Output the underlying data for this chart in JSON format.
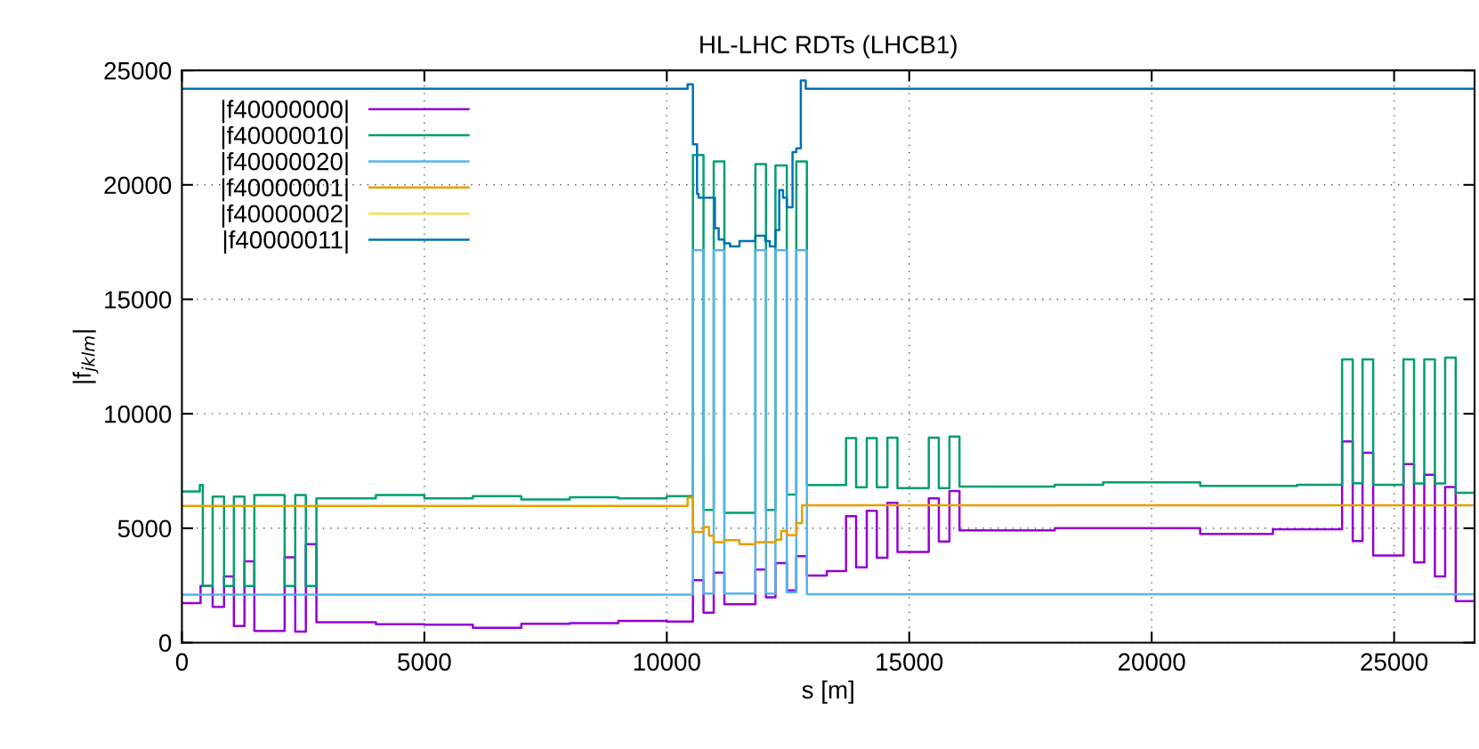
{
  "chart_data": {
    "type": "step",
    "title": "HL-LHC RDTs (LHCB1)",
    "xlabel": "s [m]",
    "ylabel": "|f$_{jklm}$|",
    "xlim": [
      0,
      26659
    ],
    "xticks": [
      0,
      5000,
      10000,
      15000,
      20000,
      25000
    ],
    "ylim": [
      0,
      25000
    ],
    "yticks": [
      0,
      5000,
      10000,
      15000,
      20000,
      25000
    ],
    "grid": true,
    "legend": "top left",
    "line_style": "solid",
    "marker": "none",
    "series": [
      {
        "name": "|f40000000|",
        "color": "#9400d3",
        "x": [
          0,
          385,
          634,
          869,
          1072,
          1290,
          1494,
          2118,
          2337,
          2556,
          2774,
          4000,
          5000,
          6000,
          7000,
          8000,
          9000,
          10000,
          10539,
          10757,
          10968,
          11187,
          11827,
          12046,
          12241,
          12475,
          12671,
          12889,
          13300,
          13697,
          13904,
          14124,
          14331,
          14550,
          14757,
          15403,
          15610,
          15829,
          16036,
          18000,
          21000,
          22500,
          23927,
          24146,
          24349,
          24568,
          25193,
          25411,
          25622,
          25841,
          26052,
          26270,
          26659
        ],
        "values": [
          1727,
          2476,
          1561,
          2892,
          730,
          3557,
          513,
          3724,
          480,
          4305,
          896,
          800,
          780,
          650,
          820,
          850,
          950,
          920,
          2725,
          1312,
          3058,
          1678,
          3191,
          1976,
          3474,
          2276,
          3773,
          2928,
          3122,
          5522,
          3291,
          5756,
          3707,
          6106,
          3966,
          6301,
          4420,
          6625,
          4900,
          5000,
          4750,
          4950,
          8795,
          4438,
          8297,
          3806,
          7798,
          3507,
          7332,
          2892,
          6800,
          1810,
          1810
        ]
      },
      {
        "name": "|f40000010|",
        "color": "#009e73",
        "x": [
          0,
          369,
          431,
          634,
          869,
          1072,
          1290,
          1494,
          2118,
          2337,
          2556,
          2774,
          4000,
          5000,
          6000,
          7000,
          8000,
          9000,
          10000,
          10539,
          10757,
          10968,
          11187,
          11827,
          12046,
          12241,
          12475,
          12671,
          12889,
          13697,
          13904,
          14124,
          14331,
          14550,
          14757,
          15403,
          15610,
          15829,
          16036,
          18000,
          19000,
          21000,
          23000,
          23927,
          24146,
          24349,
          24568,
          25193,
          25411,
          25622,
          25841,
          26052,
          26270,
          26659
        ],
        "values": [
          6600,
          6883,
          2476,
          6384,
          2476,
          6384,
          2476,
          6450,
          2476,
          6450,
          2476,
          6301,
          6450,
          6300,
          6400,
          6250,
          6350,
          6300,
          6400,
          21301,
          5802,
          21018,
          5670,
          20902,
          5802,
          20852,
          6467,
          21018,
          6883,
          8933,
          6793,
          8933,
          6793,
          8960,
          6754,
          8960,
          6754,
          9000,
          6819,
          6900,
          7000,
          6850,
          6900,
          12371,
          6966,
          12371,
          6900,
          12371,
          6950,
          12371,
          6950,
          12450,
          6550,
          6550
        ]
      },
      {
        "name": "|f40000020|",
        "color": "#56b4e9",
        "x": [
          0,
          10539,
          10757,
          10968,
          11187,
          11827,
          12046,
          12241,
          12475,
          12671,
          12889,
          26659
        ],
        "values": [
          2100,
          17144,
          2144,
          17144,
          2144,
          17144,
          2144,
          17144,
          2200,
          17144,
          2111,
          2111
        ]
      },
      {
        "name": "|f40000001|",
        "color": "#e69f00",
        "x": [
          0,
          10429,
          10539,
          10757,
          10870,
          10968,
          11187,
          11499,
          11827,
          12241,
          12359,
          12475,
          12671,
          12790,
          26659
        ],
        "values": [
          5968,
          6334,
          4837,
          5054,
          4671,
          4389,
          4472,
          4305,
          4389,
          4500,
          4887,
          4700,
          5220,
          6000,
          6000
        ]
      },
      {
        "name": "|f40000002|",
        "color": "#f0e442",
        "values": [
          null
        ]
      },
      {
        "name": "|f40000011|",
        "color": "#0072b2",
        "x": [
          0,
          10429,
          10539,
          10624,
          10656,
          10992,
          11070,
          11187,
          11304,
          11499,
          11827,
          12030,
          12124,
          12241,
          12319,
          12397,
          12475,
          12593,
          12671,
          12764,
          12866,
          26659
        ],
        "values": [
          24200,
          24394,
          21767,
          19605,
          19439,
          18108,
          17609,
          17443,
          17310,
          17543,
          17776,
          17543,
          17310,
          18025,
          19771,
          19439,
          19023,
          21434,
          21600,
          24560,
          24200,
          24200
        ]
      }
    ]
  }
}
